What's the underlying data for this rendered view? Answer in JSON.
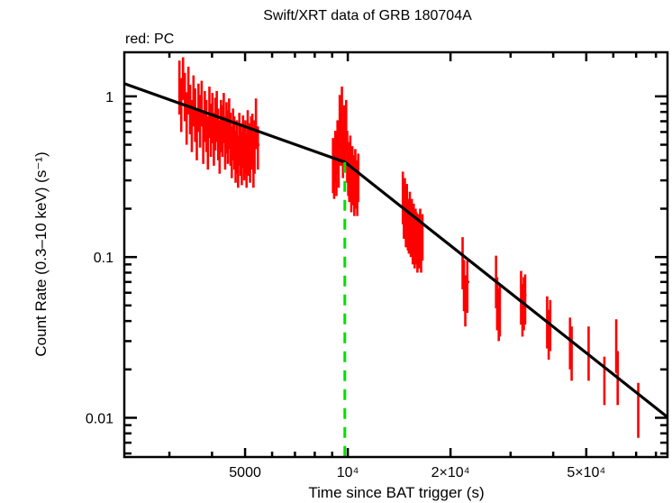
{
  "chart_data": {
    "type": "scatter",
    "title": "Swift/XRT data of GRB 180704A",
    "subtitle": "red: PC",
    "xlabel": "Time since BAT trigger (s)",
    "ylabel": "Count Rate (0.3–10 keV) (s⁻¹)",
    "xscale": "log",
    "yscale": "log",
    "xlim": [
      2213,
      86500
    ],
    "ylim": [
      0.0057,
      1.88
    ],
    "grid": false,
    "x_ticks": [
      {
        "value": 5000,
        "label": "5000"
      },
      {
        "value": 10000,
        "label": "10⁴"
      },
      {
        "value": 20000,
        "label": "2×10⁴"
      },
      {
        "value": 50000,
        "label": "5×10⁴"
      }
    ],
    "y_ticks": [
      {
        "value": 1,
        "label": "1"
      },
      {
        "value": 0.1,
        "label": "0.1"
      },
      {
        "value": 0.01,
        "label": "0.01"
      }
    ],
    "colors": {
      "data": "#ff0000",
      "model": "#000000",
      "break": "#00e000"
    },
    "series": [
      {
        "name": "PC",
        "color": "#ff0000",
        "points": [
          [
            3210,
            1.22,
            0.45,
            0.45,
            20
          ],
          [
            3250,
            0.95,
            0.35,
            0.35,
            20
          ],
          [
            3290,
            1.35,
            0.4,
            0.4,
            20
          ],
          [
            3330,
            1.05,
            0.35,
            0.35,
            20
          ],
          [
            3370,
            0.78,
            0.28,
            0.28,
            20
          ],
          [
            3410,
            1.15,
            0.38,
            0.38,
            20
          ],
          [
            3450,
            0.88,
            0.3,
            0.3,
            20
          ],
          [
            3490,
            0.7,
            0.25,
            0.25,
            20
          ],
          [
            3530,
            1.0,
            0.35,
            0.35,
            20
          ],
          [
            3570,
            0.82,
            0.3,
            0.3,
            20
          ],
          [
            3610,
            0.62,
            0.22,
            0.22,
            20
          ],
          [
            3650,
            0.9,
            0.3,
            0.3,
            20
          ],
          [
            3690,
            0.75,
            0.27,
            0.27,
            20
          ],
          [
            3730,
            0.95,
            0.3,
            0.3,
            20
          ],
          [
            3770,
            0.6,
            0.22,
            0.22,
            20
          ],
          [
            3810,
            0.8,
            0.28,
            0.28,
            20
          ],
          [
            3850,
            0.7,
            0.25,
            0.25,
            20
          ],
          [
            3890,
            0.55,
            0.2,
            0.2,
            20
          ],
          [
            3930,
            0.85,
            0.3,
            0.3,
            20
          ],
          [
            3970,
            0.66,
            0.24,
            0.24,
            20
          ],
          [
            4010,
            0.78,
            0.27,
            0.27,
            20
          ],
          [
            4050,
            0.58,
            0.21,
            0.21,
            20
          ],
          [
            4090,
            0.72,
            0.26,
            0.26,
            20
          ],
          [
            4130,
            0.8,
            0.28,
            0.28,
            20
          ],
          [
            4170,
            0.62,
            0.22,
            0.22,
            20
          ],
          [
            4210,
            0.52,
            0.19,
            0.19,
            20
          ],
          [
            4250,
            0.7,
            0.25,
            0.25,
            20
          ],
          [
            4290,
            0.65,
            0.23,
            0.23,
            20
          ],
          [
            4330,
            0.78,
            0.27,
            0.27,
            20
          ],
          [
            4370,
            0.55,
            0.2,
            0.2,
            20
          ],
          [
            4410,
            0.68,
            0.24,
            0.24,
            20
          ],
          [
            4450,
            0.6,
            0.22,
            0.22,
            20
          ],
          [
            4490,
            0.72,
            0.25,
            0.25,
            20
          ],
          [
            4530,
            0.58,
            0.21,
            0.21,
            20
          ],
          [
            4570,
            0.48,
            0.17,
            0.17,
            20
          ],
          [
            4610,
            0.62,
            0.22,
            0.22,
            20
          ],
          [
            4650,
            0.55,
            0.2,
            0.2,
            20
          ],
          [
            4690,
            0.45,
            0.16,
            0.16,
            20
          ],
          [
            4730,
            0.52,
            0.19,
            0.19,
            20
          ],
          [
            4770,
            0.42,
            0.15,
            0.15,
            20
          ],
          [
            4810,
            0.58,
            0.21,
            0.21,
            20
          ],
          [
            4850,
            0.5,
            0.18,
            0.18,
            20
          ],
          [
            4890,
            0.44,
            0.16,
            0.16,
            20
          ],
          [
            4930,
            0.56,
            0.2,
            0.2,
            20
          ],
          [
            4970,
            0.47,
            0.17,
            0.17,
            20
          ],
          [
            5010,
            0.52,
            0.19,
            0.19,
            20
          ],
          [
            5050,
            0.43,
            0.16,
            0.16,
            20
          ],
          [
            5090,
            0.6,
            0.22,
            0.22,
            20
          ],
          [
            5130,
            0.5,
            0.18,
            0.18,
            20
          ],
          [
            5170,
            0.46,
            0.17,
            0.17,
            20
          ],
          [
            5210,
            0.55,
            0.2,
            0.2,
            20
          ],
          [
            5250,
            0.58,
            0.2,
            0.2,
            20
          ],
          [
            5290,
            0.42,
            0.15,
            0.15,
            20
          ],
          [
            5330,
            0.52,
            0.19,
            0.19,
            20
          ],
          [
            5380,
            0.72,
            0.25,
            0.25,
            25
          ],
          [
            5450,
            0.5,
            0.15,
            0.15,
            60
          ],
          [
            9050,
            0.4,
            0.15,
            0.15,
            25
          ],
          [
            9120,
            0.36,
            0.13,
            0.13,
            25
          ],
          [
            9190,
            0.45,
            0.16,
            0.16,
            25
          ],
          [
            9260,
            0.38,
            0.14,
            0.14,
            25
          ],
          [
            9330,
            0.52,
            0.19,
            0.19,
            25
          ],
          [
            9400,
            0.42,
            0.15,
            0.15,
            25
          ],
          [
            9470,
            0.75,
            0.27,
            0.27,
            25
          ],
          [
            9540,
            0.58,
            0.21,
            0.21,
            25
          ],
          [
            9610,
            0.85,
            0.3,
            0.3,
            25
          ],
          [
            9680,
            0.48,
            0.17,
            0.17,
            25
          ],
          [
            9750,
            0.65,
            0.23,
            0.23,
            25
          ],
          [
            9820,
            0.55,
            0.2,
            0.2,
            25
          ],
          [
            9890,
            0.7,
            0.25,
            0.25,
            25
          ],
          [
            9960,
            0.45,
            0.16,
            0.16,
            25
          ],
          [
            10030,
            0.38,
            0.14,
            0.14,
            25
          ],
          [
            10100,
            0.34,
            0.12,
            0.12,
            25
          ],
          [
            10170,
            0.42,
            0.15,
            0.15,
            25
          ],
          [
            10240,
            0.3,
            0.11,
            0.11,
            25
          ],
          [
            10310,
            0.36,
            0.13,
            0.13,
            25
          ],
          [
            10380,
            0.32,
            0.11,
            0.11,
            25
          ],
          [
            10450,
            0.28,
            0.1,
            0.1,
            25
          ],
          [
            10520,
            0.35,
            0.12,
            0.12,
            25
          ],
          [
            10590,
            0.3,
            0.1,
            0.1,
            25
          ],
          [
            10660,
            0.27,
            0.09,
            0.09,
            25
          ],
          [
            10730,
            0.33,
            0.11,
            0.11,
            25
          ],
          [
            14500,
            0.25,
            0.09,
            0.09,
            30
          ],
          [
            14600,
            0.2,
            0.07,
            0.07,
            30
          ],
          [
            14700,
            0.23,
            0.08,
            0.08,
            30
          ],
          [
            14800,
            0.18,
            0.065,
            0.065,
            30
          ],
          [
            14900,
            0.21,
            0.075,
            0.075,
            30
          ],
          [
            15000,
            0.17,
            0.06,
            0.06,
            30
          ],
          [
            15100,
            0.16,
            0.055,
            0.055,
            30
          ],
          [
            15200,
            0.19,
            0.065,
            0.065,
            30
          ],
          [
            15300,
            0.15,
            0.05,
            0.05,
            30
          ],
          [
            15400,
            0.17,
            0.06,
            0.06,
            30
          ],
          [
            15500,
            0.14,
            0.05,
            0.05,
            30
          ],
          [
            15600,
            0.16,
            0.055,
            0.055,
            30
          ],
          [
            15700,
            0.13,
            0.045,
            0.045,
            30
          ],
          [
            15800,
            0.15,
            0.05,
            0.05,
            30
          ],
          [
            15900,
            0.14,
            0.05,
            0.05,
            30
          ],
          [
            16000,
            0.12,
            0.04,
            0.04,
            30
          ],
          [
            16100,
            0.14,
            0.045,
            0.045,
            30
          ],
          [
            16200,
            0.13,
            0.045,
            0.045,
            30
          ],
          [
            16300,
            0.15,
            0.05,
            0.05,
            30
          ],
          [
            16400,
            0.12,
            0.04,
            0.04,
            30
          ],
          [
            16550,
            0.14,
            0.045,
            0.045,
            40
          ],
          [
            21700,
            0.098,
            0.035,
            0.035,
            150
          ],
          [
            21900,
            0.071,
            0.025,
            0.025,
            150
          ],
          [
            22100,
            0.057,
            0.02,
            0.02,
            150
          ],
          [
            22400,
            0.07,
            0.025,
            0.025,
            300
          ],
          [
            27200,
            0.075,
            0.027,
            0.027,
            150
          ],
          [
            27400,
            0.055,
            0.02,
            0.02,
            150
          ],
          [
            27700,
            0.047,
            0.017,
            0.017,
            150
          ],
          [
            27900,
            0.05,
            0.018,
            0.018,
            150
          ],
          [
            32200,
            0.06,
            0.022,
            0.022,
            150
          ],
          [
            32500,
            0.05,
            0.018,
            0.018,
            150
          ],
          [
            32800,
            0.055,
            0.02,
            0.02,
            150
          ],
          [
            33100,
            0.058,
            0.02,
            0.02,
            300
          ],
          [
            38400,
            0.042,
            0.015,
            0.015,
            200
          ],
          [
            38800,
            0.035,
            0.012,
            0.012,
            200
          ],
          [
            39200,
            0.04,
            0.014,
            0.014,
            200
          ],
          [
            44800,
            0.031,
            0.011,
            0.011,
            200
          ],
          [
            45300,
            0.027,
            0.01,
            0.01,
            200
          ],
          [
            50800,
            0.027,
            0.01,
            0.01,
            300
          ],
          [
            56500,
            0.018,
            0.006,
            0.006,
            300
          ],
          [
            61200,
            0.03,
            0.011,
            0.011,
            200
          ],
          [
            61800,
            0.019,
            0.007,
            0.007,
            300
          ],
          [
            71000,
            0.012,
            0.0045,
            0.0045,
            300
          ]
        ]
      }
    ],
    "model": {
      "name": "broken power law",
      "color": "#000000",
      "points": [
        [
          2213,
          1.2
        ],
        [
          9800,
          0.39
        ],
        [
          86500,
          0.0101
        ]
      ]
    },
    "break_marker": {
      "time": 9800,
      "color": "#00e000",
      "style": "dashed"
    }
  }
}
